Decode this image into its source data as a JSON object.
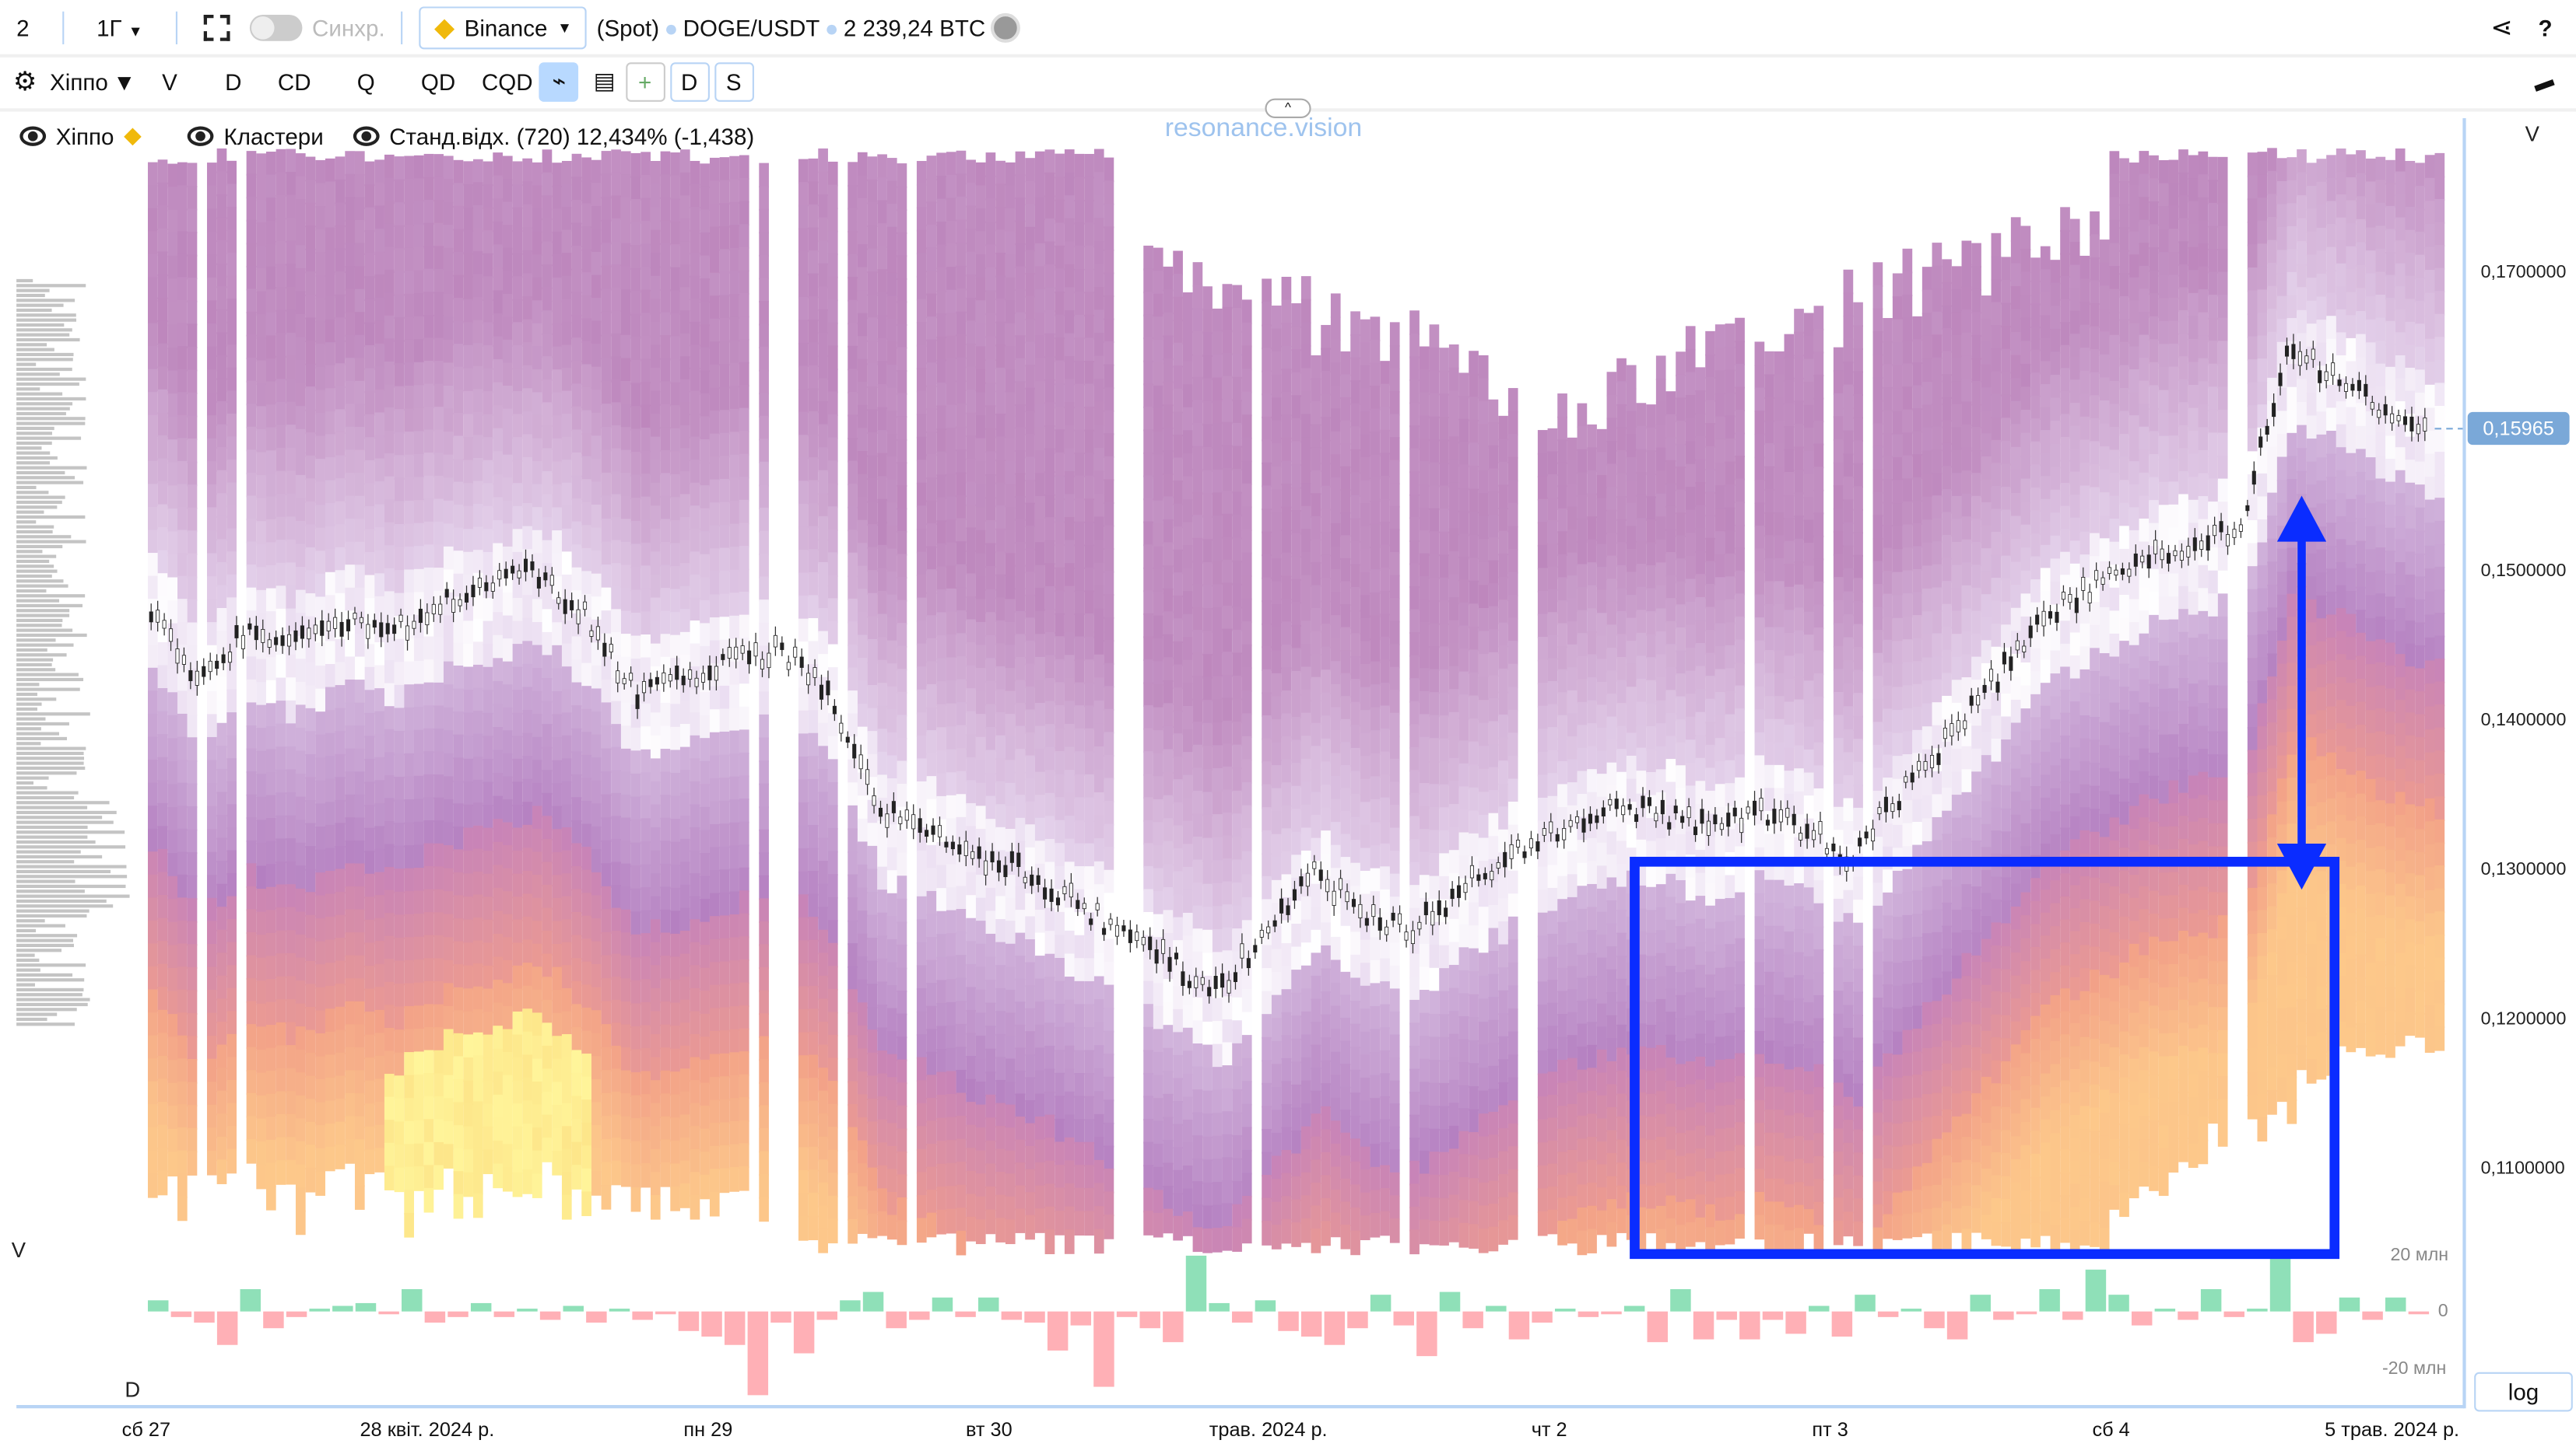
{
  "toolbar": {
    "layout_count": "2",
    "timeframe": "1Г",
    "sync_label": "Синхр.",
    "exchange": "Binance",
    "market": "(Spot)",
    "pair": "DOGE/USDT",
    "volume": "2 239,24 BTC"
  },
  "toolbar2": {
    "preset": "Хіппо",
    "buttons": [
      "V",
      "D",
      "CD",
      "Q",
      "QD",
      "CQD"
    ],
    "box_buttons": [
      "+",
      "D",
      "S"
    ]
  },
  "legend": {
    "source": "Хіппо",
    "clusters": "Кластери",
    "indicator": "Станд.відх. (720) 12,434% (-1,438)"
  },
  "watermark": "resonance.vision",
  "price_axis": {
    "header": "V",
    "ticks": [
      "0,1700000",
      "0,1500000",
      "0,1400000",
      "0,1300000",
      "0,1200000",
      "0,1100000"
    ],
    "tick_values": [
      0.17,
      0.15,
      0.14,
      0.13,
      0.12,
      0.11
    ],
    "current_price": "0,15965",
    "current_value": 0.15965,
    "scale_button": "log"
  },
  "delta_panel": {
    "label_v": "V",
    "label_d": "D",
    "ticks": [
      "20 млн",
      "0",
      "-20 млн"
    ]
  },
  "time_axis": [
    "сб 27",
    "28 квіт. 2024 р.",
    "пн 29",
    "вт 30",
    "трав. 2024 р.",
    "чт 2",
    "пт 3",
    "сб 4",
    "5 трав. 2024 р."
  ],
  "price_path": [
    0.148,
    0.143,
    0.146,
    0.145,
    0.147,
    0.146,
    0.148,
    0.149,
    0.15,
    0.147,
    0.142,
    0.143,
    0.144,
    0.145,
    0.142,
    0.134,
    0.133,
    0.131,
    0.13,
    0.128,
    0.126,
    0.124,
    0.122,
    0.126,
    0.13,
    0.127,
    0.126,
    0.129,
    0.131,
    0.133,
    0.134,
    0.134,
    0.133,
    0.134,
    0.133,
    0.131,
    0.135,
    0.139,
    0.143,
    0.147,
    0.149,
    0.151,
    0.152,
    0.153,
    0.165,
    0.163,
    0.161,
    0.16
  ],
  "delta_millions": [
    4,
    -2,
    -4,
    -12,
    8,
    -6,
    -2,
    1,
    2,
    3,
    -1,
    8,
    -4,
    -2,
    3,
    -2,
    1,
    -3,
    2,
    -4,
    1,
    -3,
    -1,
    -7,
    -9,
    -12,
    -30,
    -4,
    -15,
    -3,
    4,
    7,
    -6,
    -3,
    5,
    -2,
    5,
    -3,
    -4,
    -14,
    -5,
    -27,
    -2,
    -6,
    -11,
    20,
    3,
    -4,
    4,
    -7,
    -9,
    -12,
    -6,
    6,
    -5,
    -16,
    7,
    -6,
    2,
    -10,
    -4,
    1,
    -2,
    -1,
    2,
    -11,
    8,
    -10,
    -3,
    -10,
    -3,
    -8,
    2,
    -9,
    6,
    -2,
    1,
    -6,
    -10,
    6,
    -3,
    -1,
    8,
    -3,
    15,
    6,
    -5,
    1,
    -3,
    8,
    -2,
    1,
    21,
    -11,
    -8,
    5,
    -3,
    5,
    -1
  ]
}
